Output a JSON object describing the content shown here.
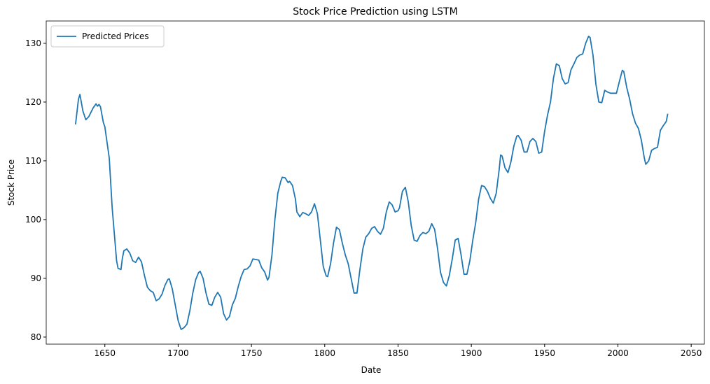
{
  "chart_data": {
    "type": "line",
    "title": "Stock Price Prediction using LSTM",
    "x_label": "Date",
    "y_label": "Stock Price",
    "x": [
      1630,
      1632,
      1633,
      1635,
      1637,
      1639,
      1642,
      1644,
      1645,
      1646,
      1647,
      1649,
      1650,
      1653,
      1655,
      1657,
      1658,
      1659,
      1661,
      1662,
      1663,
      1665,
      1667,
      1669,
      1671,
      1673,
      1675,
      1677,
      1679,
      1681,
      1683,
      1685,
      1687,
      1689,
      1691,
      1693,
      1694,
      1696,
      1698,
      1700,
      1702,
      1704,
      1706,
      1708,
      1710,
      1712,
      1714,
      1715,
      1717,
      1719,
      1721,
      1723,
      1725,
      1727,
      1729,
      1731,
      1733,
      1735,
      1737,
      1739,
      1741,
      1743,
      1745,
      1747,
      1749,
      1751,
      1753,
      1755,
      1757,
      1759,
      1761,
      1762,
      1764,
      1766,
      1768,
      1770,
      1771,
      1773,
      1775,
      1776,
      1778,
      1780,
      1781,
      1783,
      1785,
      1787,
      1789,
      1791,
      1793,
      1795,
      1797,
      1799,
      1801,
      1802,
      1804,
      1806,
      1808,
      1810,
      1812,
      1814,
      1816,
      1818,
      1820,
      1822,
      1824,
      1826,
      1828,
      1830,
      1832,
      1834,
      1836,
      1838,
      1840,
      1842,
      1844,
      1846,
      1848,
      1850,
      1851,
      1853,
      1855,
      1857,
      1859,
      1861,
      1863,
      1865,
      1867,
      1869,
      1871,
      1873,
      1875,
      1877,
      1879,
      1881,
      1883,
      1885,
      1887,
      1889,
      1891,
      1893,
      1895,
      1897,
      1899,
      1901,
      1903,
      1905,
      1907,
      1909,
      1911,
      1913,
      1915,
      1917,
      1919,
      1920,
      1921,
      1923,
      1925,
      1927,
      1929,
      1931,
      1932,
      1934,
      1936,
      1938,
      1940,
      1942,
      1944,
      1946,
      1948,
      1950,
      1952,
      1954,
      1956,
      1958,
      1960,
      1962,
      1964,
      1966,
      1968,
      1970,
      1972,
      1974,
      1976,
      1978,
      1980,
      1981,
      1983,
      1985,
      1987,
      1989,
      1991,
      1993,
      1995,
      1997,
      1999,
      2001,
      2003,
      2004,
      2006,
      2008,
      2010,
      2012,
      2014,
      2016,
      2018,
      2019,
      2021,
      2023,
      2025,
      2027,
      2029,
      2031,
      2033,
      2034
    ],
    "series": [
      {
        "name": "Predicted Prices",
        "color": "#1f77b4",
        "values": [
          116.2,
          120.5,
          121.3,
          118.5,
          117,
          117.5,
          119,
          119.7,
          119.3,
          119.6,
          119.2,
          116.5,
          115.8,
          110.5,
          102,
          96,
          93,
          91.7,
          91.5,
          93.5,
          94.7,
          95,
          94.3,
          93,
          92.7,
          93.6,
          92.8,
          90.5,
          88.5,
          87.9,
          87.6,
          86.2,
          86.5,
          87.3,
          88.8,
          89.8,
          89.9,
          88.2,
          85.5,
          82.8,
          81.3,
          81.6,
          82.2,
          84.5,
          87.5,
          89.8,
          91,
          91.2,
          90,
          87.5,
          85.6,
          85.4,
          86.8,
          87.6,
          86.8,
          84,
          82.9,
          83.5,
          85.5,
          86.6,
          88.6,
          90.3,
          91.5,
          91.6,
          92.1,
          93.3,
          93.2,
          93.1,
          91.8,
          91.1,
          89.7,
          90.2,
          94,
          100,
          104.5,
          106.5,
          107.2,
          107.1,
          106.3,
          106.5,
          105.8,
          103.5,
          101.3,
          100.5,
          101.2,
          101,
          100.7,
          101.3,
          102.7,
          101,
          96.5,
          92,
          90.4,
          90.3,
          92.5,
          96,
          98.7,
          98.3,
          96,
          94,
          92.5,
          90,
          87.5,
          87.5,
          91.5,
          95,
          97,
          97.6,
          98.5,
          98.8,
          98,
          97.5,
          98.5,
          101.3,
          103,
          102.5,
          101.3,
          101.5,
          102,
          104.8,
          105.5,
          103,
          99,
          96.5,
          96.3,
          97.3,
          97.8,
          97.6,
          98,
          99.3,
          98.3,
          95,
          91,
          89.3,
          88.7,
          90.5,
          93.3,
          96.5,
          96.8,
          94,
          90.7,
          90.7,
          93,
          96.5,
          99.5,
          103.5,
          105.8,
          105.6,
          104.8,
          103.6,
          102.8,
          104.5,
          108.5,
          111,
          110.8,
          108.8,
          108,
          109.8,
          112.5,
          114.2,
          114.3,
          113.5,
          111.5,
          111.5,
          113.3,
          113.8,
          113.3,
          111.3,
          111.5,
          115,
          117.8,
          120,
          124,
          126.5,
          126.2,
          124,
          123.1,
          123.3,
          125.5,
          126.5,
          127.6,
          128,
          128.2,
          130,
          131.2,
          131,
          128,
          123,
          120,
          119.9,
          122,
          121.7,
          121.5,
          121.5,
          121.5,
          123.5,
          125.4,
          125.2,
          122.5,
          120.5,
          118,
          116.4,
          115.5,
          113.5,
          110.5,
          109.4,
          110,
          111.8,
          112.1,
          112.3,
          115.2,
          116,
          116.7,
          118
        ]
      }
    ],
    "xlim": [
      1610,
      2059
    ],
    "ylim": [
      78.8,
      133.8
    ],
    "xticks": [
      1650,
      1700,
      1750,
      1800,
      1850,
      1900,
      1950,
      2000,
      2050
    ],
    "yticks": [
      80,
      90,
      100,
      110,
      120,
      130
    ],
    "legend": "upper left"
  }
}
